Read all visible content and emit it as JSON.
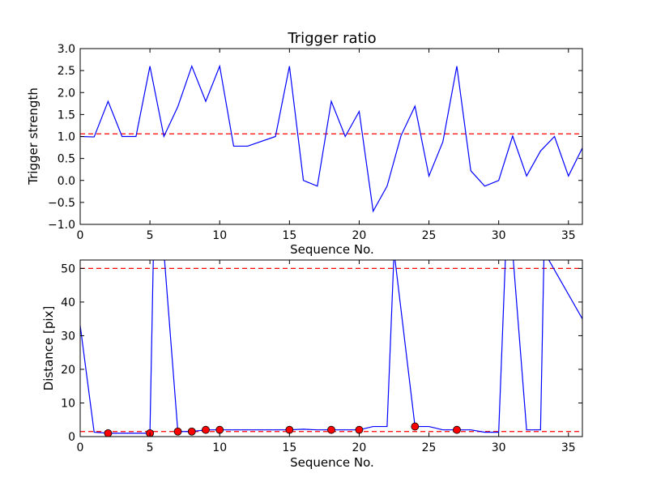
{
  "chart_data": [
    {
      "type": "line",
      "title": "Trigger ratio",
      "xlabel": "Sequence No.",
      "ylabel": "Trigger strength",
      "xlim": [
        0,
        36
      ],
      "ylim": [
        -1.0,
        3.0
      ],
      "xticks": [
        0,
        5,
        10,
        15,
        20,
        25,
        30,
        35
      ],
      "xtick_labels": [
        "0",
        "5",
        "10",
        "15",
        "20",
        "25",
        "30",
        "35"
      ],
      "yticks": [
        -1.0,
        -0.5,
        0.0,
        0.5,
        1.0,
        1.5,
        2.0,
        2.5,
        3.0
      ],
      "ytick_labels": [
        "−1.0",
        "−0.5",
        "0.0",
        "0.5",
        "1.0",
        "1.5",
        "2.0",
        "2.5",
        "3.0"
      ],
      "grid": false,
      "series": [
        {
          "color": "#0000ff",
          "style": "solid",
          "x": [
            0,
            1,
            2,
            3,
            4,
            5,
            6,
            7,
            8,
            9,
            10,
            11,
            12,
            14,
            15,
            16,
            17,
            18,
            19,
            20,
            21,
            22,
            23,
            24,
            25,
            26,
            27,
            28,
            29,
            30,
            31,
            32,
            33,
            34,
            35,
            36
          ],
          "y": [
            1.0,
            0.99,
            1.8,
            1.0,
            1.0,
            2.6,
            1.0,
            1.68,
            2.6,
            1.8,
            2.6,
            0.78,
            0.78,
            1.0,
            2.6,
            0.0,
            -0.13,
            1.8,
            1.0,
            1.57,
            -0.7,
            -0.13,
            1.02,
            1.69,
            0.1,
            0.88,
            2.6,
            0.22,
            -0.13,
            0.0,
            1.01,
            0.1,
            0.67,
            1.0,
            0.1,
            0.74
          ]
        }
      ],
      "hlines": [
        {
          "y": 1.06,
          "color": "#ff0000",
          "style": "dashed"
        }
      ]
    },
    {
      "type": "line",
      "title": "",
      "xlabel": "Sequence No.",
      "ylabel": "Distance [pix]",
      "xlim": [
        0,
        36
      ],
      "ylim": [
        0,
        52.5
      ],
      "xticks": [
        0,
        5,
        10,
        15,
        20,
        25,
        30,
        35
      ],
      "xtick_labels": [
        "0",
        "5",
        "10",
        "15",
        "20",
        "25",
        "30",
        "35"
      ],
      "yticks": [
        0,
        10,
        20,
        30,
        40,
        50
      ],
      "ytick_labels": [
        "0",
        "10",
        "20",
        "30",
        "40",
        "50"
      ],
      "grid": false,
      "series": [
        {
          "color": "#0000ff",
          "style": "solid",
          "x": [
            0,
            1,
            2,
            3,
            4,
            5,
            5.25,
            6,
            7,
            8,
            9,
            10,
            11,
            12,
            13,
            14,
            15,
            16,
            17,
            18,
            19,
            20,
            21,
            22,
            22.5,
            24,
            25,
            26,
            27,
            28,
            29,
            30,
            30.5,
            31,
            32,
            33,
            33.25,
            36
          ],
          "y": [
            33,
            1.3,
            1.0,
            1.0,
            1.0,
            1.0,
            55,
            55,
            1.5,
            1.5,
            2.0,
            2.0,
            2.0,
            2.0,
            2.0,
            2.0,
            2.0,
            2.2,
            2.0,
            2.0,
            2.0,
            2.0,
            3.0,
            3.0,
            55,
            3.0,
            3.0,
            2.0,
            2.0,
            2.0,
            1.3,
            1.3,
            55,
            55,
            2.0,
            2.0,
            55,
            35
          ]
        },
        {
          "color": "#ff0000",
          "style": "markers",
          "x": [
            2,
            5,
            7,
            8,
            9,
            10,
            15,
            18,
            20,
            24,
            27
          ],
          "y": [
            1.0,
            1.0,
            1.5,
            1.5,
            2.0,
            2.0,
            2.0,
            2.0,
            2.0,
            3.0,
            2.0
          ]
        }
      ],
      "hlines": [
        {
          "y": 50,
          "color": "#ff0000",
          "style": "dashed"
        },
        {
          "y": 1.5,
          "color": "#ff0000",
          "style": "dashed"
        }
      ]
    }
  ]
}
